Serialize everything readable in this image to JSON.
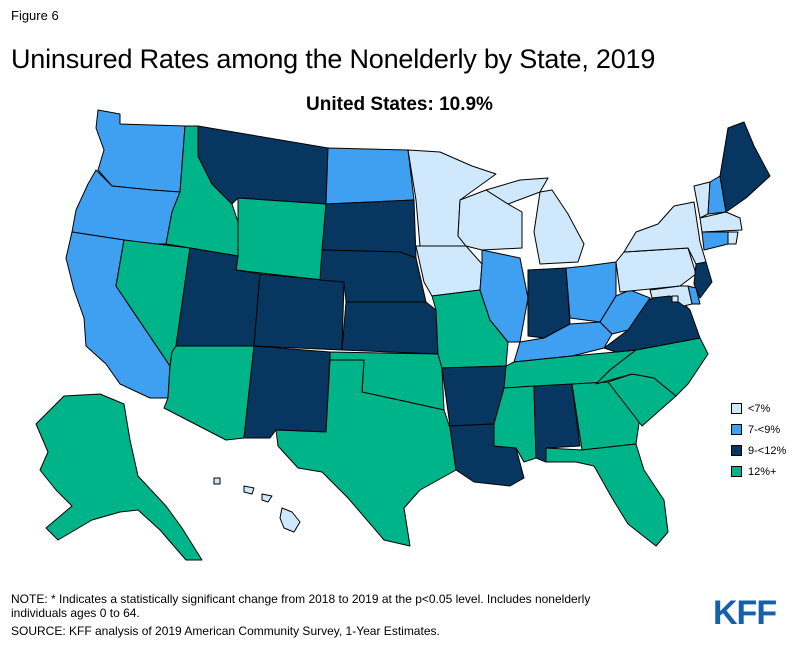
{
  "figure_label": "Figure 6",
  "title": "Uninsured Rates among the Nonelderly by State, 2019",
  "subtitle": "United States: 10.9%",
  "colors": {
    "lt7": "#cfe8fb",
    "7to9": "#3fa0f2",
    "9to12": "#073761",
    "12plus": "#00b48a",
    "border": "#000000",
    "logo": "#1560a8"
  },
  "legend": [
    {
      "label": "<7%",
      "color_key": "lt7"
    },
    {
      "label": "7-<9%",
      "color_key": "7to9"
    },
    {
      "label": "9-<12%",
      "color_key": "9to12"
    },
    {
      "label": "12%+",
      "color_key": "12plus"
    }
  ],
  "states": [
    {
      "id": "WA",
      "color_key": "7to9"
    },
    {
      "id": "OR",
      "color_key": "7to9"
    },
    {
      "id": "CA",
      "color_key": "7to9"
    },
    {
      "id": "NV",
      "color_key": "12plus"
    },
    {
      "id": "ID",
      "color_key": "12plus"
    },
    {
      "id": "MT",
      "color_key": "9to12"
    },
    {
      "id": "WY",
      "color_key": "12plus"
    },
    {
      "id": "UT",
      "color_key": "9to12"
    },
    {
      "id": "AZ",
      "color_key": "12plus"
    },
    {
      "id": "CO",
      "color_key": "9to12"
    },
    {
      "id": "NM",
      "color_key": "9to12"
    },
    {
      "id": "ND",
      "color_key": "7to9"
    },
    {
      "id": "SD",
      "color_key": "9to12"
    },
    {
      "id": "NE",
      "color_key": "9to12"
    },
    {
      "id": "KS",
      "color_key": "9to12"
    },
    {
      "id": "OK",
      "color_key": "12plus"
    },
    {
      "id": "TX",
      "color_key": "12plus"
    },
    {
      "id": "MN",
      "color_key": "lt7"
    },
    {
      "id": "IA",
      "color_key": "lt7"
    },
    {
      "id": "MO",
      "color_key": "12plus"
    },
    {
      "id": "AR",
      "color_key": "9to12"
    },
    {
      "id": "LA",
      "color_key": "9to12"
    },
    {
      "id": "WI",
      "color_key": "lt7"
    },
    {
      "id": "IL",
      "color_key": "7to9"
    },
    {
      "id": "MI",
      "color_key": "lt7"
    },
    {
      "id": "IN",
      "color_key": "9to12"
    },
    {
      "id": "OH",
      "color_key": "7to9"
    },
    {
      "id": "KY",
      "color_key": "7to9"
    },
    {
      "id": "TN",
      "color_key": "12plus"
    },
    {
      "id": "MS",
      "color_key": "12plus"
    },
    {
      "id": "AL",
      "color_key": "9to12"
    },
    {
      "id": "GA",
      "color_key": "12plus"
    },
    {
      "id": "FL",
      "color_key": "12plus"
    },
    {
      "id": "SC",
      "color_key": "12plus"
    },
    {
      "id": "NC",
      "color_key": "12plus"
    },
    {
      "id": "VA",
      "color_key": "9to12"
    },
    {
      "id": "WV",
      "color_key": "7to9"
    },
    {
      "id": "PA",
      "color_key": "lt7"
    },
    {
      "id": "NY",
      "color_key": "lt7"
    },
    {
      "id": "VT",
      "color_key": "lt7"
    },
    {
      "id": "NH",
      "color_key": "7to9"
    },
    {
      "id": "ME",
      "color_key": "9to12"
    },
    {
      "id": "MA",
      "color_key": "lt7"
    },
    {
      "id": "RI",
      "color_key": "lt7"
    },
    {
      "id": "CT",
      "color_key": "7to9"
    },
    {
      "id": "NJ",
      "color_key": "9to12"
    },
    {
      "id": "DE",
      "color_key": "7to9"
    },
    {
      "id": "MD",
      "color_key": "lt7"
    },
    {
      "id": "DC",
      "color_key": "lt7"
    },
    {
      "id": "AK",
      "color_key": "12plus"
    },
    {
      "id": "HI",
      "color_key": "lt7"
    }
  ],
  "note": "NOTE: * Indicates a statistically significant change from 2018 to 2019 at the p<0.05 level. Includes nonelderly individuals ages 0 to 64.",
  "source": "SOURCE: KFF analysis of 2019 American Community Survey, 1-Year Estimates.",
  "logo": "KFF"
}
